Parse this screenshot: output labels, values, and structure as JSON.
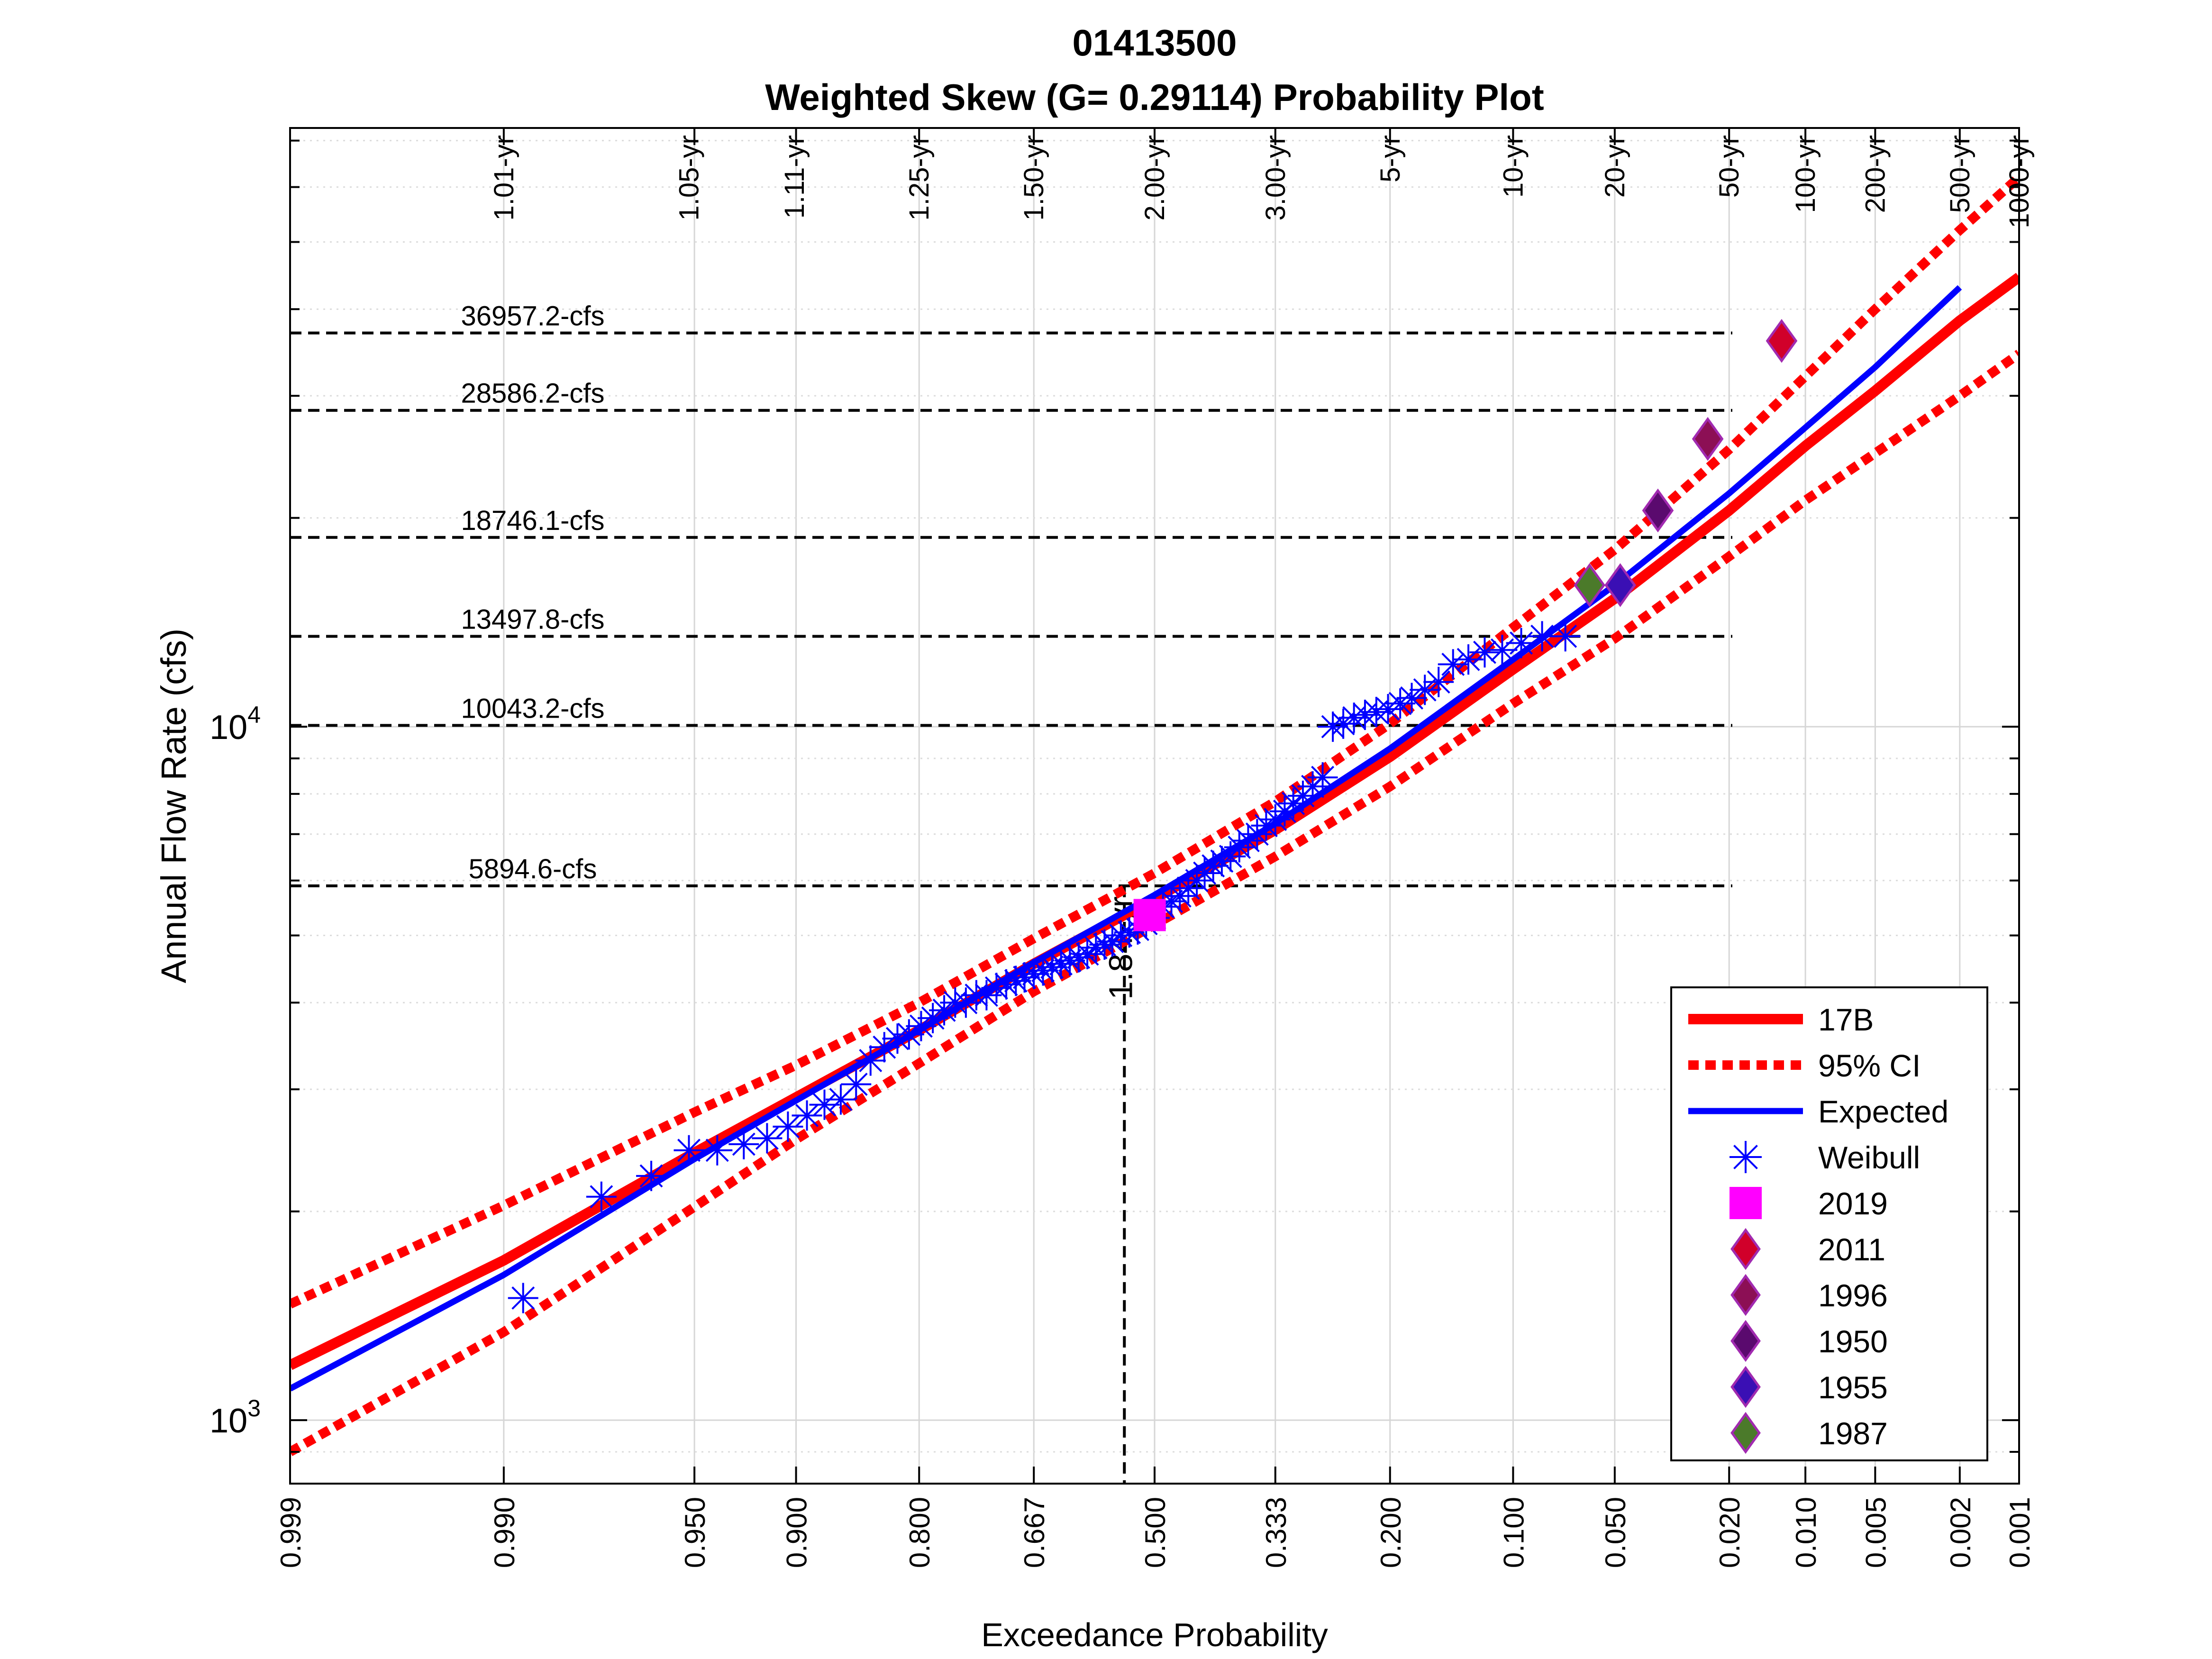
{
  "chart_data": {
    "type": "scatter",
    "title": "01413500",
    "subtitle": "Weighted Skew (G= 0.29114) Probability Plot",
    "xlabel": "Exceedance Probability",
    "ylabel": "Annual Flow Rate (cfs)",
    "x_scale": "normal-probability",
    "y_scale": "log",
    "xlim": [
      0.999,
      0.001
    ],
    "ylim": [
      810,
      73000
    ],
    "grid": true,
    "legend_position": "bottom-right",
    "x_ticks": [
      {
        "p": 0.999,
        "label": "0.999"
      },
      {
        "p": 0.99,
        "label": "0.990"
      },
      {
        "p": 0.95,
        "label": "0.950"
      },
      {
        "p": 0.9,
        "label": "0.900"
      },
      {
        "p": 0.8,
        "label": "0.800"
      },
      {
        "p": 0.667,
        "label": "0.667"
      },
      {
        "p": 0.5,
        "label": "0.500"
      },
      {
        "p": 0.333,
        "label": "0.333"
      },
      {
        "p": 0.2,
        "label": "0.200"
      },
      {
        "p": 0.1,
        "label": "0.100"
      },
      {
        "p": 0.05,
        "label": "0.050"
      },
      {
        "p": 0.02,
        "label": "0.020"
      },
      {
        "p": 0.01,
        "label": "0.010"
      },
      {
        "p": 0.005,
        "label": "0.005"
      },
      {
        "p": 0.002,
        "label": "0.002"
      },
      {
        "p": 0.001,
        "label": "0.001"
      }
    ],
    "y_ticks": [
      {
        "v": 1000,
        "base": "10",
        "exp": "3"
      },
      {
        "v": 10000,
        "base": "10",
        "exp": "4"
      }
    ],
    "return_periods": [
      {
        "p": 0.99,
        "label": "1.01-yr"
      },
      {
        "p": 0.952,
        "label": "1.05-yr"
      },
      {
        "p": 0.901,
        "label": "1.11-yr"
      },
      {
        "p": 0.8,
        "label": "1.25-yr"
      },
      {
        "p": 0.667,
        "label": "1.50-yr"
      },
      {
        "p": 0.5,
        "label": "2.00-yr"
      },
      {
        "p": 0.333,
        "label": "3.00-yr"
      },
      {
        "p": 0.2,
        "label": "5-yr"
      },
      {
        "p": 0.1,
        "label": "10-yr"
      },
      {
        "p": 0.05,
        "label": "20-yr"
      },
      {
        "p": 0.02,
        "label": "50-yr"
      },
      {
        "p": 0.01,
        "label": "100-yr"
      },
      {
        "p": 0.005,
        "label": "200-yr"
      },
      {
        "p": 0.002,
        "label": "500-yr"
      },
      {
        "p": 0.001,
        "label": "1000-yr"
      }
    ],
    "reference_flows": [
      {
        "v": 36957.2,
        "label": "36957.2-cfs"
      },
      {
        "v": 28586.2,
        "label": "28586.2-cfs"
      },
      {
        "v": 18746.1,
        "label": "18746.1-cfs"
      },
      {
        "v": 13497.8,
        "label": "13497.8-cfs"
      },
      {
        "v": 10043.2,
        "label": "10043.2-cfs"
      },
      {
        "v": 5894.6,
        "label": "5894.6-cfs"
      }
    ],
    "marker_event": {
      "p": 0.543,
      "label": "1.84-yr"
    },
    "series": [
      {
        "name": "17B",
        "kind": "line",
        "color": "#ff0000",
        "x": [
          0.999,
          0.99,
          0.95,
          0.9,
          0.8,
          0.667,
          0.5,
          0.333,
          0.2,
          0.1,
          0.05,
          0.02,
          0.01,
          0.005,
          0.002,
          0.001
        ],
        "y": [
          1200,
          1700,
          2430,
          2920,
          3650,
          4550,
          5650,
          7100,
          9050,
          12100,
          15300,
          20500,
          25400,
          30500,
          38500,
          44500
        ]
      },
      {
        "name": "95% CI",
        "kind": "dotted",
        "color": "#ff0000",
        "x": [
          0.999,
          0.99,
          0.95,
          0.9,
          0.8,
          0.667,
          0.5,
          0.333,
          0.2,
          0.1,
          0.05,
          0.02,
          0.01,
          0.005,
          0.002,
          0.001
        ],
        "y": [
          1470,
          2040,
          2780,
          3250,
          4000,
          4950,
          6150,
          7800,
          10100,
          13900,
          18000,
          25100,
          32000,
          40000,
          52000,
          62000
        ]
      },
      {
        "name": "95% CI lower",
        "kind": "dotted",
        "color": "#ff0000",
        "x": [
          0.999,
          0.99,
          0.95,
          0.9,
          0.8,
          0.667,
          0.5,
          0.333,
          0.2,
          0.1,
          0.05,
          0.02,
          0.01,
          0.005,
          0.002,
          0.001
        ],
        "y": [
          900,
          1340,
          2030,
          2540,
          3270,
          4150,
          5180,
          6500,
          8200,
          10800,
          13400,
          17600,
          21200,
          24800,
          30000,
          34500
        ]
      },
      {
        "name": "Expected",
        "kind": "line",
        "color": "#0000ff",
        "x": [
          0.999,
          0.99,
          0.95,
          0.9,
          0.8,
          0.667,
          0.5,
          0.333,
          0.2,
          0.1,
          0.05,
          0.02,
          0.01,
          0.005,
          0.002
        ],
        "y": [
          1110,
          1620,
          2380,
          2890,
          3650,
          4570,
          5720,
          7250,
          9300,
          12500,
          16000,
          21700,
          27000,
          33000,
          43000
        ]
      },
      {
        "name": "Weibull",
        "kind": "star",
        "color": "#0000ff",
        "x": [
          0.988,
          0.976,
          0.964,
          0.952,
          0.941,
          0.929,
          0.917,
          0.905,
          0.893,
          0.881,
          0.869,
          0.857,
          0.845,
          0.833,
          0.821,
          0.81,
          0.798,
          0.786,
          0.774,
          0.762,
          0.75,
          0.738,
          0.726,
          0.714,
          0.702,
          0.69,
          0.679,
          0.667,
          0.655,
          0.643,
          0.631,
          0.619,
          0.607,
          0.595,
          0.583,
          0.571,
          0.56,
          0.548,
          0.536,
          0.524,
          0.512,
          0.5,
          0.488,
          0.476,
          0.464,
          0.452,
          0.44,
          0.429,
          0.417,
          0.405,
          0.393,
          0.381,
          0.369,
          0.357,
          0.345,
          0.333,
          0.321,
          0.31,
          0.298,
          0.286,
          0.274,
          0.262,
          0.25,
          0.238,
          0.226,
          0.214,
          0.202,
          0.19,
          0.179,
          0.167,
          0.155,
          0.143,
          0.131,
          0.119,
          0.107,
          0.095,
          0.083,
          0.071
        ],
        "y": [
          1500,
          2100,
          2250,
          2450,
          2450,
          2500,
          2550,
          2650,
          2750,
          2850,
          2900,
          3050,
          3300,
          3450,
          3550,
          3600,
          3700,
          3800,
          3900,
          4000,
          4000,
          4100,
          4100,
          4200,
          4250,
          4300,
          4350,
          4400,
          4450,
          4500,
          4550,
          4600,
          4650,
          4700,
          4800,
          4850,
          4900,
          5000,
          5050,
          5100,
          5200,
          5300,
          5500,
          5600,
          5700,
          5850,
          6000,
          6150,
          6300,
          6400,
          6500,
          6700,
          6850,
          7000,
          7200,
          7350,
          7550,
          7750,
          7950,
          8200,
          8450,
          10000,
          10100,
          10300,
          10400,
          10500,
          10600,
          10800,
          11000,
          11300,
          11600,
          12300,
          12500,
          12800,
          12900,
          13200,
          13500,
          13500
        ]
      },
      {
        "name": "2019",
        "kind": "square",
        "color": "#ff00ff",
        "x": [
          0.507
        ],
        "y": [
          5350
        ]
      },
      {
        "name": "2011",
        "kind": "diamond",
        "color": "#d1002a",
        "x": [
          0.0125
        ],
        "y": [
          36000
        ]
      },
      {
        "name": "1996",
        "kind": "diamond",
        "color": "#8c0f55",
        "x": [
          0.024
        ],
        "y": [
          26000
        ]
      },
      {
        "name": "1950",
        "kind": "diamond",
        "color": "#5a0a6e",
        "x": [
          0.036
        ],
        "y": [
          20500
        ]
      },
      {
        "name": "1955",
        "kind": "diamond",
        "color": "#3a0fb4",
        "x": [
          0.048
        ],
        "y": [
          16000
        ]
      },
      {
        "name": "1987",
        "kind": "diamond",
        "color": "#4b7a2a",
        "x": [
          0.06
        ],
        "y": [
          16000
        ]
      }
    ]
  }
}
